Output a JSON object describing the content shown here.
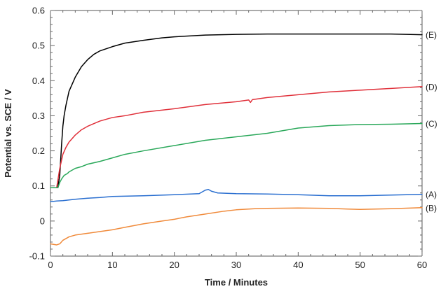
{
  "chart_data": {
    "type": "line",
    "title": "",
    "xlabel": "Time / Minutes",
    "ylabel": "Potential vs. SCE / V",
    "xlim": [
      0,
      60
    ],
    "ylim": [
      -0.1,
      0.6
    ],
    "grid": false,
    "legend": "series labels at right end of lines",
    "x_ticks": [
      "0",
      "10",
      "20",
      "30",
      "40",
      "50",
      "60"
    ],
    "y_ticks": [
      "-0.1",
      "0",
      "0.1",
      "0.2",
      "0.3",
      "0.4",
      "0.5",
      "0.6"
    ],
    "series": [
      {
        "name": "(E)",
        "color": "#000000",
        "x": [
          0,
          1.2,
          1.2,
          1.5,
          1.8,
          2.0,
          2.2,
          2.5,
          3,
          3.5,
          4,
          5,
          6,
          7,
          8,
          10,
          12,
          15,
          18,
          20,
          25,
          30,
          35,
          40,
          45,
          50,
          55,
          60
        ],
        "y": [
          0.095,
          0.095,
          0.097,
          0.13,
          0.22,
          0.27,
          0.3,
          0.33,
          0.37,
          0.39,
          0.41,
          0.44,
          0.46,
          0.475,
          0.485,
          0.497,
          0.507,
          0.515,
          0.522,
          0.525,
          0.53,
          0.532,
          0.533,
          0.533,
          0.533,
          0.533,
          0.533,
          0.531
        ]
      },
      {
        "name": "(D)",
        "color": "#e0303a",
        "x": [
          0,
          1.0,
          1.5,
          2.0,
          2.5,
          3,
          4,
          5,
          6,
          8,
          10,
          12,
          15,
          20,
          25,
          30,
          32,
          32.3,
          32.6,
          35,
          40,
          45,
          50,
          55,
          60
        ],
        "y": [
          0.095,
          0.095,
          0.15,
          0.19,
          0.21,
          0.225,
          0.245,
          0.26,
          0.27,
          0.285,
          0.295,
          0.3,
          0.31,
          0.32,
          0.332,
          0.34,
          0.345,
          0.338,
          0.346,
          0.352,
          0.36,
          0.368,
          0.373,
          0.378,
          0.383
        ]
      },
      {
        "name": "(C)",
        "color": "#2aa85a",
        "x": [
          0,
          1.2,
          1.5,
          1.8,
          2.2,
          2.7,
          3,
          4,
          5,
          6,
          8,
          10,
          12,
          15,
          20,
          25,
          30,
          35,
          40,
          45,
          50,
          55,
          60
        ],
        "y": [
          0.095,
          0.095,
          0.11,
          0.12,
          0.13,
          0.135,
          0.14,
          0.15,
          0.155,
          0.162,
          0.17,
          0.18,
          0.19,
          0.2,
          0.215,
          0.23,
          0.24,
          0.25,
          0.265,
          0.272,
          0.275,
          0.276,
          0.278
        ]
      },
      {
        "name": "(A)",
        "color": "#2a6fd0",
        "x": [
          0,
          1,
          2,
          4,
          6,
          8,
          10,
          15,
          20,
          24,
          25,
          25.5,
          26,
          27,
          30,
          35,
          40,
          45,
          50,
          55,
          60
        ],
        "y": [
          0.055,
          0.057,
          0.058,
          0.062,
          0.065,
          0.067,
          0.07,
          0.072,
          0.075,
          0.078,
          0.088,
          0.09,
          0.085,
          0.08,
          0.078,
          0.077,
          0.075,
          0.072,
          0.072,
          0.074,
          0.076
        ]
      },
      {
        "name": "(B)",
        "color": "#f08a3a",
        "x": [
          0,
          1,
          1.5,
          2,
          2.5,
          3,
          4,
          6,
          8,
          10,
          12,
          15,
          18,
          20,
          22,
          25,
          28,
          30,
          33,
          35,
          40,
          45,
          48,
          50,
          55,
          60
        ],
        "y": [
          -0.065,
          -0.068,
          -0.065,
          -0.055,
          -0.05,
          -0.045,
          -0.04,
          -0.035,
          -0.03,
          -0.025,
          -0.018,
          -0.008,
          0.0,
          0.005,
          0.012,
          0.02,
          0.028,
          0.032,
          0.035,
          0.036,
          0.037,
          0.036,
          0.034,
          0.033,
          0.035,
          0.038
        ]
      }
    ]
  }
}
